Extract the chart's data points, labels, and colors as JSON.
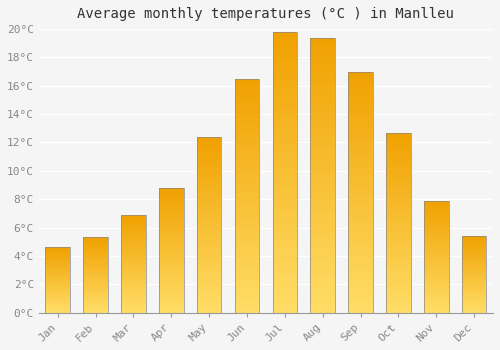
{
  "title": "Average monthly temperatures (°C ) in Manlleu",
  "months": [
    "Jan",
    "Feb",
    "Mar",
    "Apr",
    "May",
    "Jun",
    "Jul",
    "Aug",
    "Sep",
    "Oct",
    "Nov",
    "Dec"
  ],
  "values": [
    4.6,
    5.3,
    6.9,
    8.8,
    12.4,
    16.5,
    19.8,
    19.4,
    17.0,
    12.7,
    7.9,
    5.4
  ],
  "bar_color": "#F5A800",
  "bar_color_light": "#FFD966",
  "ylim": [
    0,
    20
  ],
  "yticks": [
    0,
    2,
    4,
    6,
    8,
    10,
    12,
    14,
    16,
    18,
    20
  ],
  "ytick_labels": [
    "0°C",
    "2°C",
    "4°C",
    "6°C",
    "8°C",
    "10°C",
    "12°C",
    "14°C",
    "16°C",
    "18°C",
    "20°C"
  ],
  "background_color": "#F5F5F5",
  "grid_color": "#FFFFFF",
  "title_fontsize": 10,
  "tick_fontsize": 8,
  "tick_color": "#888888",
  "bar_width": 0.65,
  "border_color": "#888888"
}
